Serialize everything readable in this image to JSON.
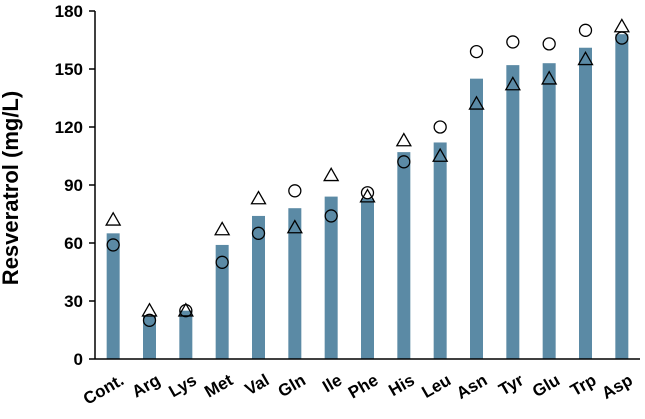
{
  "chart_data": {
    "type": "bar",
    "title": "",
    "xlabel": "",
    "ylabel": "Resveratrol (mg/L)",
    "ylim": [
      0,
      180
    ],
    "yticks": [
      0,
      30,
      60,
      90,
      120,
      150,
      180
    ],
    "grid": false,
    "legend": "none",
    "bar_color": "#5b8aa5",
    "categories": [
      "Cont.",
      "Arg",
      "Lys",
      "Met",
      "Val",
      "Gln",
      "Ile",
      "Phe",
      "His",
      "Leu",
      "Asn",
      "Tyr",
      "Glu",
      "Trp",
      "Asp"
    ],
    "values": [
      65,
      22,
      25,
      59,
      74,
      78,
      84,
      83,
      107,
      112,
      145,
      152,
      153,
      161,
      168
    ],
    "markers": [
      {
        "shape": "triangle",
        "values": [
          72,
          25,
          25,
          67,
          83,
          68,
          95,
          84,
          113,
          105,
          132,
          142,
          145,
          155,
          172
        ]
      },
      {
        "shape": "circle",
        "values": [
          59,
          20,
          25,
          50,
          65,
          87,
          74,
          86,
          102,
          120,
          159,
          164,
          163,
          170,
          166
        ]
      }
    ]
  }
}
